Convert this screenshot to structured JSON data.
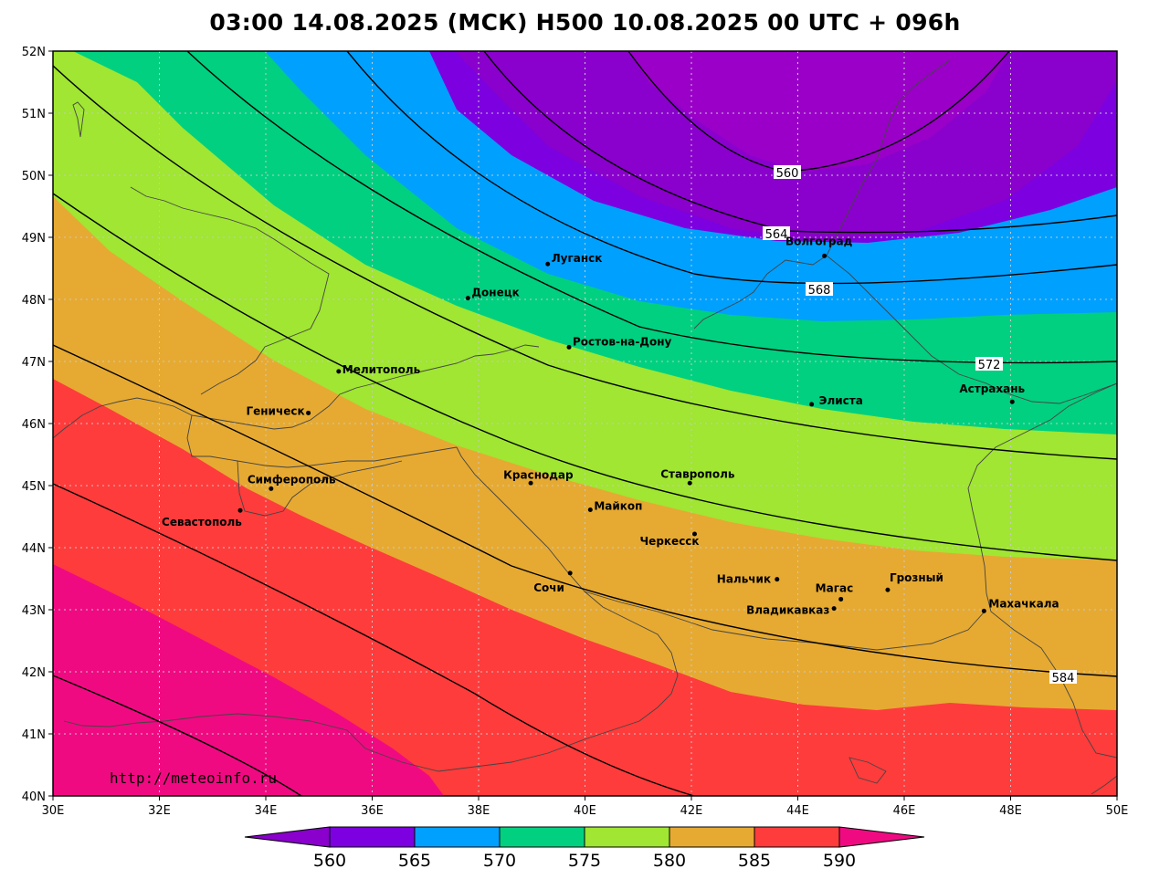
{
  "title": "03:00 14.08.2025 (МСК) H500  10.08.2025 00 UTC + 096h",
  "credit": "http://meteoinfo.ru",
  "colors": {
    "c560": "#8a00cc",
    "c565": "#7c00e0",
    "c570": "#00a0ff",
    "c575": "#00d080",
    "c580": "#a0e632",
    "c585": "#e6aa32",
    "c590": "#ff3c3c",
    "c595": "#f00a82",
    "core": "#9a00c8"
  },
  "axes": {
    "lon_labels": [
      "30E",
      "32E",
      "34E",
      "36E",
      "38E",
      "40E",
      "42E",
      "44E",
      "46E",
      "48E",
      "50E"
    ],
    "lat_labels": [
      "40N",
      "41N",
      "42N",
      "43N",
      "44N",
      "45N",
      "46N",
      "47N",
      "48N",
      "49N",
      "50N",
      "51N",
      "52N"
    ]
  },
  "colorbar": {
    "labels": [
      "560",
      "565",
      "570",
      "575",
      "580",
      "585",
      "590"
    ]
  },
  "contour_labels": [
    "560",
    "564",
    "568",
    "572",
    "584"
  ],
  "cities": [
    {
      "name": "Луганск",
      "lon": 39.3,
      "lat": 48.57
    },
    {
      "name": "Донецк",
      "lon": 37.8,
      "lat": 48.02
    },
    {
      "name": "Волгоград",
      "lon": 44.5,
      "lat": 48.7
    },
    {
      "name": "Ростов-на-Дону",
      "lon": 39.7,
      "lat": 47.23
    },
    {
      "name": "Мелитополь",
      "lon": 35.37,
      "lat": 46.84
    },
    {
      "name": "Геническ",
      "lon": 34.8,
      "lat": 46.17
    },
    {
      "name": "Элиста",
      "lon": 44.26,
      "lat": 46.31
    },
    {
      "name": "Астрахань",
      "lon": 48.03,
      "lat": 46.35
    },
    {
      "name": "Симферополь",
      "lon": 34.1,
      "lat": 44.95
    },
    {
      "name": "Краснодар",
      "lon": 38.98,
      "lat": 45.04
    },
    {
      "name": "Ставрополь",
      "lon": 41.97,
      "lat": 45.04
    },
    {
      "name": "Майкоп",
      "lon": 40.1,
      "lat": 44.61
    },
    {
      "name": "Севастополь",
      "lon": 33.52,
      "lat": 44.6
    },
    {
      "name": "Черкесск",
      "lon": 42.06,
      "lat": 44.22
    },
    {
      "name": "Сочи",
      "lon": 39.72,
      "lat": 43.59
    },
    {
      "name": "Нальчик",
      "lon": 43.61,
      "lat": 43.49
    },
    {
      "name": "Грозный",
      "lon": 45.69,
      "lat": 43.32
    },
    {
      "name": "Магас",
      "lon": 44.81,
      "lat": 43.17
    },
    {
      "name": "Владикавказ",
      "lon": 44.68,
      "lat": 43.02
    },
    {
      "name": "Махачкала",
      "lon": 47.5,
      "lat": 42.98
    }
  ]
}
